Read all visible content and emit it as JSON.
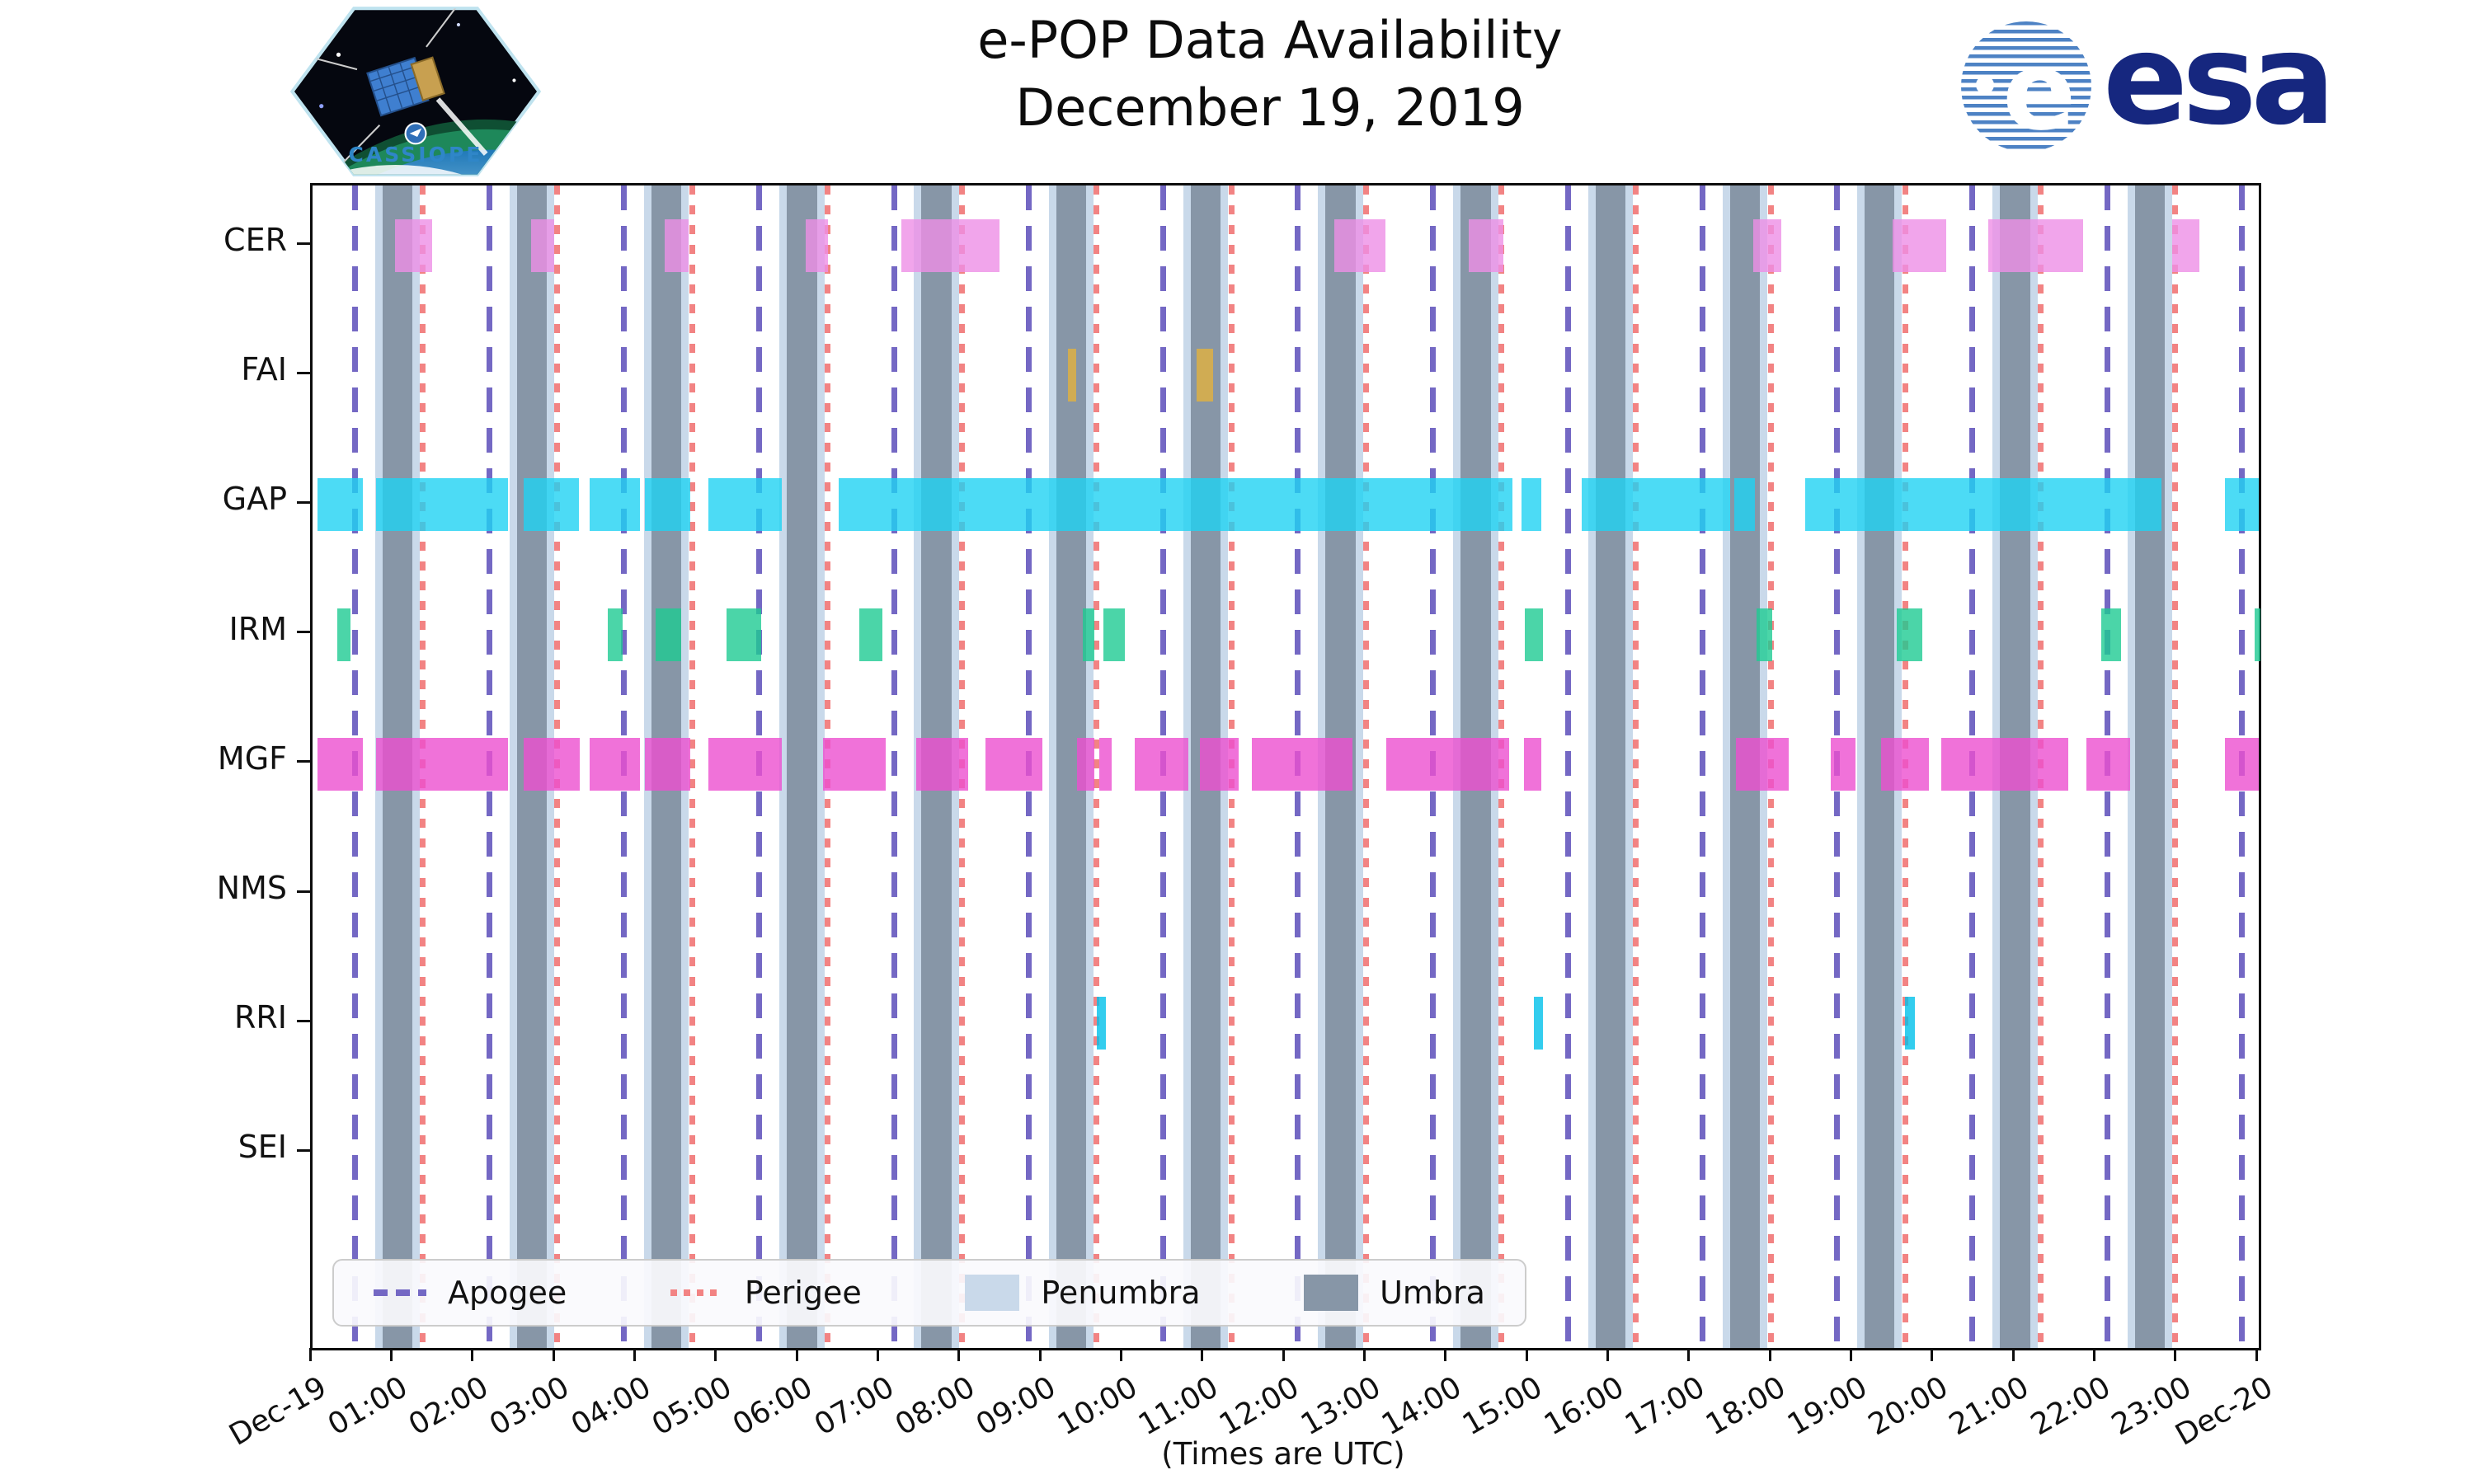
{
  "header": {
    "title_line1": "e-POP Data Availability",
    "title_line2": "December 19, 2019",
    "cassiope_patch_text": "CASSIOPE",
    "esa_logo_e": "e",
    "esa_logo_text": "esa"
  },
  "axis_caption": "(Times are UTC)",
  "colors": {
    "umbra": "#8796a7",
    "penumbra": "#c9d9ea",
    "apogee": "#7468c4",
    "perigee": "#f28383",
    "spine": "#0d0d0d"
  },
  "chart_data": {
    "type": "bar",
    "subtype": "broken-bar availability timeline (Gantt) with orbital event overlays",
    "title": "e-POP Data Availability",
    "subtitle": "December 19, 2019",
    "xlabel": "(Times are UTC)",
    "x_unit": "hours UTC on 2019-12-19",
    "xlim": [
      0,
      24
    ],
    "grid": false,
    "legend_position": "lower left inside axes",
    "x_tick_labels": [
      "Dec-19",
      "01:00",
      "02:00",
      "03:00",
      "04:00",
      "05:00",
      "06:00",
      "07:00",
      "08:00",
      "09:00",
      "10:00",
      "11:00",
      "12:00",
      "13:00",
      "14:00",
      "15:00",
      "16:00",
      "17:00",
      "18:00",
      "19:00",
      "20:00",
      "21:00",
      "22:00",
      "23:00",
      "Dec-20"
    ],
    "categories": [
      "CER",
      "FAI",
      "GAP",
      "IRM",
      "MGF",
      "NMS",
      "RRI",
      "SEI"
    ],
    "series": [
      {
        "name": "CER",
        "color": "#ee8fe6",
        "intervals": [
          [
            1.02,
            1.47
          ],
          [
            2.69,
            2.98
          ],
          [
            4.34,
            4.64
          ],
          [
            6.08,
            6.36
          ],
          [
            7.26,
            8.47
          ],
          [
            12.6,
            13.23
          ],
          [
            14.26,
            14.68
          ],
          [
            17.77,
            18.11
          ],
          [
            19.48,
            20.15
          ],
          [
            20.66,
            21.83
          ],
          [
            22.93,
            23.27
          ]
        ]
      },
      {
        "name": "FAI",
        "color": "#e2b23f",
        "intervals": [
          [
            9.32,
            9.42
          ],
          [
            10.9,
            11.11
          ]
        ]
      },
      {
        "name": "GAP",
        "color": "#1fd2f2",
        "intervals": [
          [
            0.06,
            0.62
          ],
          [
            0.78,
            2.41
          ],
          [
            2.6,
            3.28
          ],
          [
            3.42,
            4.04
          ],
          [
            4.1,
            4.66
          ],
          [
            4.88,
            5.79
          ],
          [
            6.49,
            14.8
          ],
          [
            14.91,
            15.15
          ],
          [
            15.65,
            17.48
          ],
          [
            17.53,
            17.79
          ],
          [
            18.41,
            22.8
          ],
          [
            23.58,
            24.0
          ]
        ]
      },
      {
        "name": "IRM",
        "color": "#1ecb92",
        "intervals": [
          [
            0.3,
            0.47
          ],
          [
            3.64,
            3.82
          ],
          [
            4.23,
            4.55
          ],
          [
            5.1,
            5.53
          ],
          [
            6.74,
            7.03
          ],
          [
            9.5,
            9.64
          ],
          [
            9.75,
            10.02
          ],
          [
            14.95,
            15.17
          ],
          [
            17.81,
            18.0
          ],
          [
            19.54,
            19.85
          ],
          [
            22.06,
            22.3
          ],
          [
            23.95,
            24.0
          ]
        ]
      },
      {
        "name": "MGF",
        "color": "#ec4fd0",
        "intervals": [
          [
            0.06,
            0.62
          ],
          [
            0.78,
            2.41
          ],
          [
            2.6,
            3.3
          ],
          [
            3.42,
            4.04
          ],
          [
            4.1,
            4.66
          ],
          [
            4.88,
            5.79
          ],
          [
            6.29,
            7.07
          ],
          [
            7.44,
            8.08
          ],
          [
            8.3,
            9.0
          ],
          [
            9.43,
            9.64
          ],
          [
            9.7,
            9.85
          ],
          [
            10.14,
            10.8
          ],
          [
            10.94,
            11.42
          ],
          [
            11.58,
            12.82
          ],
          [
            13.24,
            14.76
          ],
          [
            14.94,
            15.15
          ],
          [
            17.55,
            18.2
          ],
          [
            18.72,
            19.03
          ],
          [
            19.34,
            19.93
          ],
          [
            20.08,
            21.65
          ],
          [
            21.87,
            22.41
          ],
          [
            23.58,
            24.0
          ]
        ]
      },
      {
        "name": "NMS",
        "color": "#bbbbbb",
        "intervals": []
      },
      {
        "name": "RRI",
        "color": "#00c0ea",
        "intervals": [
          [
            9.67,
            9.78
          ],
          [
            15.06,
            15.17
          ],
          [
            19.64,
            19.76
          ]
        ]
      },
      {
        "name": "SEI",
        "color": "#bbbbbb",
        "intervals": []
      }
    ],
    "orbit_events": {
      "apogee_times": [
        0.52,
        2.18,
        3.84,
        5.51,
        7.17,
        8.83,
        10.49,
        12.15,
        13.82,
        15.48,
        17.14,
        18.8,
        20.47,
        22.13,
        23.79
      ],
      "perigee_times": [
        1.36,
        3.02,
        4.68,
        6.35,
        8.01,
        9.67,
        11.33,
        12.99,
        14.66,
        16.32,
        17.98,
        19.64,
        21.31,
        22.97
      ],
      "umbra_intervals": [
        [
          0.86,
          1.23
        ],
        [
          2.52,
          2.89
        ],
        [
          4.18,
          4.55
        ],
        [
          5.85,
          6.22
        ],
        [
          7.51,
          7.88
        ],
        [
          9.17,
          9.54
        ],
        [
          10.83,
          11.2
        ],
        [
          12.49,
          12.86
        ],
        [
          14.16,
          14.53
        ],
        [
          15.82,
          16.19
        ],
        [
          17.48,
          17.85
        ],
        [
          19.14,
          19.51
        ],
        [
          20.81,
          21.18
        ],
        [
          22.47,
          22.84
        ]
      ],
      "penumbra_note": "thin penumbra strips flank each umbra band"
    },
    "legend": [
      {
        "label": "Apogee",
        "style": "dashed-line",
        "color": "#7468c4"
      },
      {
        "label": "Perigee",
        "style": "dotted-line",
        "color": "#f28383"
      },
      {
        "label": "Penumbra",
        "style": "patch",
        "color": "#c9d9ea"
      },
      {
        "label": "Umbra",
        "style": "patch",
        "color": "#8796a7"
      }
    ]
  }
}
